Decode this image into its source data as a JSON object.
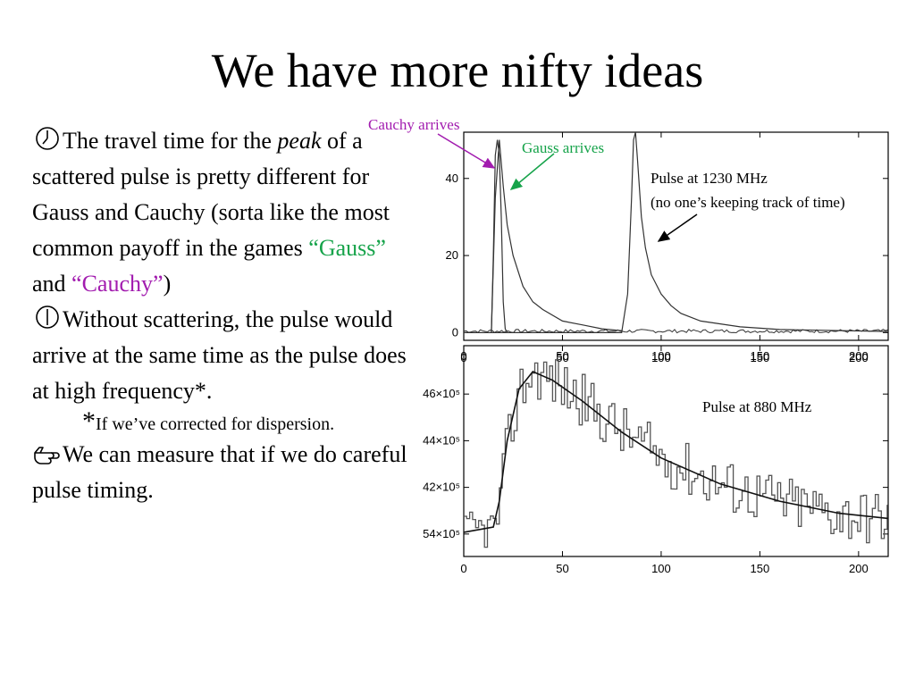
{
  "slide": {
    "title": "We have more nifty ideas",
    "bullets": [
      {
        "icon": "clock-icon",
        "line1": "The travel time for the",
        "peak_italic": "peak",
        "line2_rest": " of a scattered pulse is pretty different for Gauss and Cauchy (sorta like the most common payoff in the games ",
        "gauss_label": "“Gauss”",
        "and": " and ",
        "cauchy_label": "“Cauchy”",
        "close": ")"
      },
      {
        "icon": "clock-icon",
        "text": "Without scattering, the pulse would arrive at the same time as the pulse does at high frequency*."
      }
    ],
    "footnote": {
      "star": "*",
      "text": "If we’ve corrected for dispersion."
    },
    "bullet3": {
      "icon": "pointing-hand-icon",
      "text": "We can measure that if we do careful pulse timing."
    },
    "colors": {
      "gauss": "#16a34a",
      "cauchy": "#a21caf"
    }
  },
  "annotations": {
    "cauchy_arrives": "Cauchy arrives",
    "gauss_arrives": "Gauss arrives",
    "pulse_1230_line1": "Pulse at 1230 MHz",
    "pulse_1230_line2": "(no one’s keeping track of time)",
    "pulse_880": "Pulse at 880 MHz"
  },
  "chart_data": [
    {
      "type": "line",
      "title": "",
      "xlabel": "",
      "ylabel": "",
      "xlim": [
        0,
        215
      ],
      "ylim": [
        -2,
        52
      ],
      "x_ticks": [
        0,
        50,
        100,
        150,
        200
      ],
      "y_ticks": [
        0,
        20,
        40
      ],
      "series": [
        {
          "shape": "gauss_spike",
          "x": [
            14,
            15,
            16,
            17,
            18,
            19,
            20,
            21,
            22
          ],
          "y": [
            0,
            20,
            46,
            50,
            46,
            30,
            8,
            1,
            0
          ]
        },
        {
          "shape": "cauchy_tail",
          "x": [
            14,
            16,
            18,
            20,
            22,
            25,
            30,
            35,
            40,
            50,
            60,
            70,
            80
          ],
          "y": [
            0,
            35,
            50,
            38,
            28,
            20,
            12,
            8,
            6,
            3,
            2,
            1,
            0.5
          ]
        },
        {
          "shape": "measured_1230",
          "x": [
            0,
            80,
            83,
            85,
            86,
            87,
            88,
            90,
            92,
            95,
            100,
            105,
            110,
            120,
            140,
            160,
            215
          ],
          "y": [
            0,
            0,
            10,
            35,
            50,
            52,
            45,
            30,
            22,
            15,
            10,
            7,
            5,
            3,
            1.5,
            0.8,
            0.3
          ]
        }
      ]
    },
    {
      "type": "line",
      "title": "",
      "xlabel": "",
      "ylabel": "",
      "xlim": [
        0,
        215
      ],
      "ylim": [
        -0.12,
        1.1
      ],
      "x_ticks": [
        0,
        50,
        100,
        150,
        200
      ],
      "y_tick_labels": [
        "46×10⁵",
        "44×10⁵",
        "42×10⁵",
        "54×10⁵"
      ],
      "series": [
        {
          "shape": "measured_880_noisy"
        },
        {
          "shape": "fit_880_smooth",
          "x": [
            0,
            15,
            18,
            22,
            28,
            35,
            45,
            60,
            80,
            100,
            130,
            160,
            190,
            215
          ],
          "y": [
            0.02,
            0.05,
            0.2,
            0.55,
            0.85,
            0.95,
            0.9,
            0.78,
            0.6,
            0.45,
            0.3,
            0.2,
            0.13,
            0.1
          ]
        }
      ]
    }
  ]
}
